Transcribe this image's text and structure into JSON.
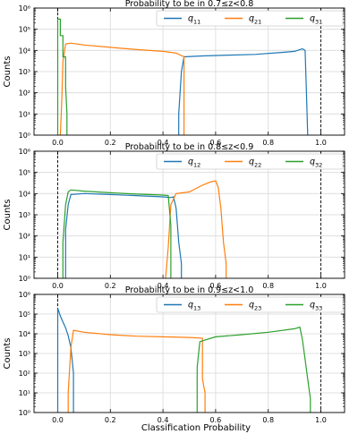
{
  "colors": {
    "q1": "#1f77b4",
    "q2": "#ff7f0e",
    "q3": "#2ca02c",
    "grid": "#d9d9d9",
    "vline": "#000000"
  },
  "xlabel": "Classification Probability",
  "ylabel": "Counts",
  "chart_data": [
    {
      "type": "step-histogram",
      "title": "Probability to be in 0.7≤z<0.8",
      "xlim": [
        -0.09,
        1.09
      ],
      "ylim": [
        1,
        1000000
      ],
      "yscale": "log",
      "xticks": [
        "0.0",
        "0.2",
        "0.4",
        "0.6",
        "0.8",
        "1.0"
      ],
      "yticks": [
        "10⁰",
        "10¹",
        "10²",
        "10³",
        "10⁴",
        "10⁵",
        "10⁶"
      ],
      "legend": {
        "position": "top-right",
        "entries": [
          "q11",
          "q21",
          "q31"
        ]
      },
      "vlines": [
        0,
        1
      ],
      "series": [
        {
          "name": "q11",
          "color_key": "q1",
          "points": [
            [
              0.46,
              1
            ],
            [
              0.46,
              10
            ],
            [
              0.47,
              1000
            ],
            [
              0.48,
              5000
            ],
            [
              0.55,
              5500
            ],
            [
              0.65,
              6000
            ],
            [
              0.75,
              6500
            ],
            [
              0.85,
              8000
            ],
            [
              0.9,
              9000
            ],
            [
              0.93,
              12000
            ],
            [
              0.94,
              10000
            ],
            [
              0.945,
              100
            ],
            [
              0.95,
              1
            ]
          ]
        },
        {
          "name": "q21",
          "color_key": "q2",
          "points": [
            [
              0.01,
              1
            ],
            [
              0.015,
              30
            ],
            [
              0.02,
              3000
            ],
            [
              0.03,
              20000
            ],
            [
              0.05,
              22000
            ],
            [
              0.1,
              18000
            ],
            [
              0.2,
              14000
            ],
            [
              0.3,
              11000
            ],
            [
              0.4,
              9000
            ],
            [
              0.45,
              7500
            ],
            [
              0.48,
              5000
            ],
            [
              0.48,
              1
            ]
          ]
        },
        {
          "name": "q31",
          "color_key": "q3",
          "points": [
            [
              0,
              1
            ],
            [
              0,
              300000
            ],
            [
              0.01,
              300000
            ],
            [
              0.01,
              50000
            ],
            [
              0.02,
              50000
            ],
            [
              0.02,
              5000
            ],
            [
              0.03,
              5000
            ],
            [
              0.03,
              200
            ],
            [
              0.035,
              10
            ],
            [
              0.035,
              1
            ]
          ]
        }
      ]
    },
    {
      "type": "step-histogram",
      "title": "Probability to be in 0.8≤z<0.9",
      "xlim": [
        -0.09,
        1.09
      ],
      "ylim": [
        1,
        1000000
      ],
      "yscale": "log",
      "xticks": [
        "0.0",
        "0.2",
        "0.4",
        "0.6",
        "0.8",
        "1.0"
      ],
      "yticks": [
        "10⁰",
        "10¹",
        "10²",
        "10³",
        "10⁴",
        "10⁵",
        "10⁶"
      ],
      "legend": {
        "position": "top-right",
        "entries": [
          "q12",
          "q22",
          "q32"
        ]
      },
      "vlines": [
        0,
        1
      ],
      "series": [
        {
          "name": "q12",
          "color_key": "q1",
          "points": [
            [
              0.03,
              1
            ],
            [
              0.03,
              200
            ],
            [
              0.04,
              3000
            ],
            [
              0.05,
              9000
            ],
            [
              0.1,
              10000
            ],
            [
              0.2,
              9000
            ],
            [
              0.3,
              8000
            ],
            [
              0.4,
              7000
            ],
            [
              0.43,
              6500
            ],
            [
              0.44,
              7000
            ],
            [
              0.45,
              2000
            ],
            [
              0.46,
              50
            ],
            [
              0.47,
              5
            ],
            [
              0.47,
              1
            ]
          ]
        },
        {
          "name": "q22",
          "color_key": "q2",
          "points": [
            [
              0.41,
              1
            ],
            [
              0.42,
              30
            ],
            [
              0.43,
              3000
            ],
            [
              0.45,
              10000
            ],
            [
              0.5,
              12000
            ],
            [
              0.55,
              25000
            ],
            [
              0.58,
              35000
            ],
            [
              0.6,
              40000
            ],
            [
              0.61,
              20000
            ],
            [
              0.62,
              2000
            ],
            [
              0.63,
              50
            ],
            [
              0.64,
              5
            ],
            [
              0.64,
              1
            ]
          ]
        },
        {
          "name": "q32",
          "color_key": "q3",
          "points": [
            [
              0.02,
              1
            ],
            [
              0.02,
              50
            ],
            [
              0.03,
              3000
            ],
            [
              0.04,
              12000
            ],
            [
              0.05,
              15000
            ],
            [
              0.1,
              13000
            ],
            [
              0.2,
              11000
            ],
            [
              0.3,
              9500
            ],
            [
              0.4,
              8500
            ],
            [
              0.42,
              8000
            ],
            [
              0.43,
              300
            ],
            [
              0.43,
              1
            ]
          ]
        }
      ]
    },
    {
      "type": "step-histogram",
      "title": "Probability to be in 0.9≤z<1.0",
      "xlim": [
        -0.09,
        1.09
      ],
      "ylim": [
        1,
        1000000
      ],
      "yscale": "log",
      "xticks": [
        "0.0",
        "0.2",
        "0.4",
        "0.6",
        "0.8",
        "1.0"
      ],
      "yticks": [
        "10⁰",
        "10¹",
        "10²",
        "10³",
        "10⁴",
        "10⁵",
        "10⁶"
      ],
      "legend": {
        "position": "top-right",
        "entries": [
          "q13",
          "q23",
          "q33"
        ]
      },
      "vlines": [
        0,
        1
      ],
      "series": [
        {
          "name": "q13",
          "color_key": "q1",
          "points": [
            [
              0,
              1
            ],
            [
              0,
              200000
            ],
            [
              0.01,
              80000
            ],
            [
              0.02,
              40000
            ],
            [
              0.03,
              20000
            ],
            [
              0.04,
              8000
            ],
            [
              0.05,
              2000
            ],
            [
              0.06,
              100
            ],
            [
              0.06,
              1
            ]
          ]
        },
        {
          "name": "q23",
          "color_key": "q2",
          "points": [
            [
              0.04,
              1
            ],
            [
              0.04,
              10
            ],
            [
              0.05,
              2000
            ],
            [
              0.06,
              15000
            ],
            [
              0.1,
              12000
            ],
            [
              0.2,
              9000
            ],
            [
              0.3,
              7500
            ],
            [
              0.4,
              7000
            ],
            [
              0.5,
              6500
            ],
            [
              0.55,
              6000
            ],
            [
              0.55,
              50
            ],
            [
              0.56,
              10
            ],
            [
              0.56,
              1
            ]
          ]
        },
        {
          "name": "q33",
          "color_key": "q3",
          "points": [
            [
              0.53,
              1
            ],
            [
              0.53,
              200
            ],
            [
              0.54,
              4000
            ],
            [
              0.6,
              7000
            ],
            [
              0.7,
              9000
            ],
            [
              0.8,
              12000
            ],
            [
              0.9,
              18000
            ],
            [
              0.92,
              22000
            ],
            [
              0.93,
              5000
            ],
            [
              0.94,
              500
            ],
            [
              0.95,
              50
            ],
            [
              0.96,
              5
            ],
            [
              0.96,
              1
            ]
          ]
        }
      ]
    }
  ]
}
